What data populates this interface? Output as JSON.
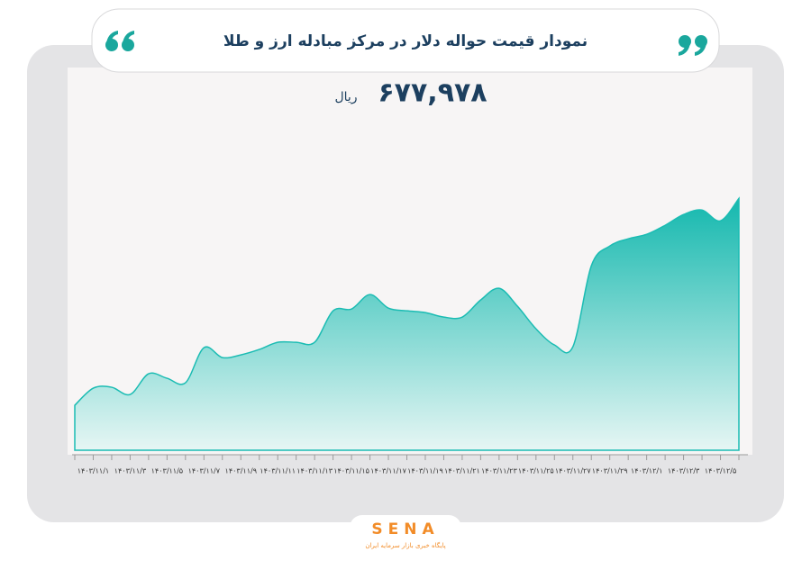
{
  "chart_data": {
    "type": "area",
    "title": "نمودار قیمت حواله دلار در مرکز مبادله ارز و طلا",
    "headline": {
      "value_label": "۶۷۷,۹۷۸",
      "unit": "ریال"
    },
    "categories": [
      null,
      "۱۴۰۳/۱۱/۱",
      null,
      "۱۴۰۳/۱۱/۳",
      null,
      "۱۴۰۳/۱۱/۵",
      null,
      "۱۴۰۳/۱۱/۷",
      null,
      "۱۴۰۳/۱۱/۹",
      null,
      "۱۴۰۳/۱۱/۱۱",
      null,
      "۱۴۰۳/۱۱/۱۳",
      null,
      "۱۴۰۳/۱۱/۱۵",
      null,
      "۱۴۰۳/۱۱/۱۷",
      null,
      "۱۴۰۳/۱۱/۱۹",
      null,
      "۱۴۰۳/۱۱/۲۱",
      null,
      "۱۴۰۳/۱۱/۲۳",
      null,
      "۱۴۰۳/۱۱/۲۵",
      null,
      "۱۴۰۳/۱۱/۲۷",
      null,
      "۱۴۰۳/۱۱/۲۹",
      null,
      "۱۴۰۳/۱۲/۱",
      null,
      "۱۴۰۳/۱۲/۳",
      null,
      "۱۴۰۳/۱۲/۵",
      null
    ],
    "values": [
      597500,
      604150,
      604500,
      601700,
      609750,
      608000,
      606250,
      619900,
      616050,
      617100,
      619200,
      622000,
      622000,
      622000,
      634250,
      634950,
      640550,
      635300,
      634250,
      633550,
      631800,
      631800,
      638450,
      643000,
      636000,
      627250,
      620950,
      620250,
      651750,
      659450,
      662250,
      664000,
      667500,
      671700,
      673450,
      669250,
      677978
    ],
    "color": "#1bbcb3",
    "ylim": [
      580000,
      690000
    ],
    "logo": {
      "name": "SENA",
      "tagline": "پایگاه خبری بازار سرمایه ایران"
    }
  }
}
